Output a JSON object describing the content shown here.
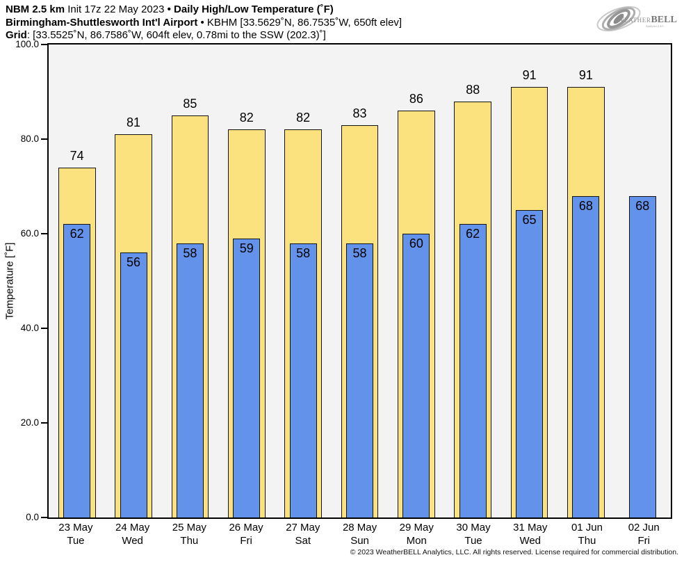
{
  "header": {
    "line1_model": "NBM 2.5 km",
    "line1_init": " Init 17z 22 May 2023 ",
    "line1_bullet": "•",
    "line1_title": " Daily High/Low Temperature (˚F)",
    "line2_station": "Birmingham-Shuttlesworth Int'l Airport",
    "line2_rest": " • KBHM [33.5629˚N, 86.7535˚W, 650ft elev]",
    "line3_label": "Grid",
    "line3_rest": ": [33.5525˚N, 86.7586˚W, 604ft elev, 0.78mi to the SSW (202.3)˚]"
  },
  "logo": {
    "weather_w": "W",
    "weather_rest": "EATHER",
    "bell": "BELL",
    "analytics": "Analytics LLC"
  },
  "chart_data": {
    "type": "bar",
    "title": "NBM 2.5 km Init 17z 22 May 2023 • Daily High/Low Temperature (˚F)",
    "subtitle": "Birmingham-Shuttlesworth Int'l Airport • KBHM [33.5629˚N, 86.7535˚W, 650ft elev]",
    "grid_info": "Grid: [33.5525˚N, 86.7586˚W, 604ft elev, 0.78mi to the SSW (202.3)˚]",
    "xlabel": "",
    "ylabel": "Temperature [˚F]",
    "ylim": [
      0,
      100
    ],
    "yticks": [
      {
        "value": 0,
        "label": "0.0"
      },
      {
        "value": 20,
        "label": "20.0"
      },
      {
        "value": 40,
        "label": "40.0"
      },
      {
        "value": 60,
        "label": "60.0"
      },
      {
        "value": 80,
        "label": "80.0"
      },
      {
        "value": 100,
        "label": "100.0"
      }
    ],
    "grid": false,
    "legend_position": "none",
    "plot_background": "#F3F3F3",
    "categories": [
      {
        "date": "23 May",
        "weekday": "Tue"
      },
      {
        "date": "24 May",
        "weekday": "Wed"
      },
      {
        "date": "25 May",
        "weekday": "Thu"
      },
      {
        "date": "26 May",
        "weekday": "Fri"
      },
      {
        "date": "27 May",
        "weekday": "Sat"
      },
      {
        "date": "28 May",
        "weekday": "Sun"
      },
      {
        "date": "29 May",
        "weekday": "Mon"
      },
      {
        "date": "30 May",
        "weekday": "Tue"
      },
      {
        "date": "31 May",
        "weekday": "Wed"
      },
      {
        "date": "01 Jun",
        "weekday": "Thu"
      },
      {
        "date": "02 Jun",
        "weekday": "Fri"
      }
    ],
    "series": [
      {
        "name": "Daily High",
        "color": "#FCE27E",
        "values": [
          74,
          81,
          85,
          82,
          82,
          83,
          86,
          88,
          91,
          91,
          null
        ]
      },
      {
        "name": "Daily Low",
        "color": "#6292EA",
        "values": [
          62,
          56,
          58,
          59,
          58,
          58,
          60,
          62,
          65,
          68,
          68
        ]
      }
    ]
  },
  "footer": {
    "copyright": "© 2023 WeatherBELL Analytics, LLC. All rights reserved. License required for commercial distribution."
  }
}
